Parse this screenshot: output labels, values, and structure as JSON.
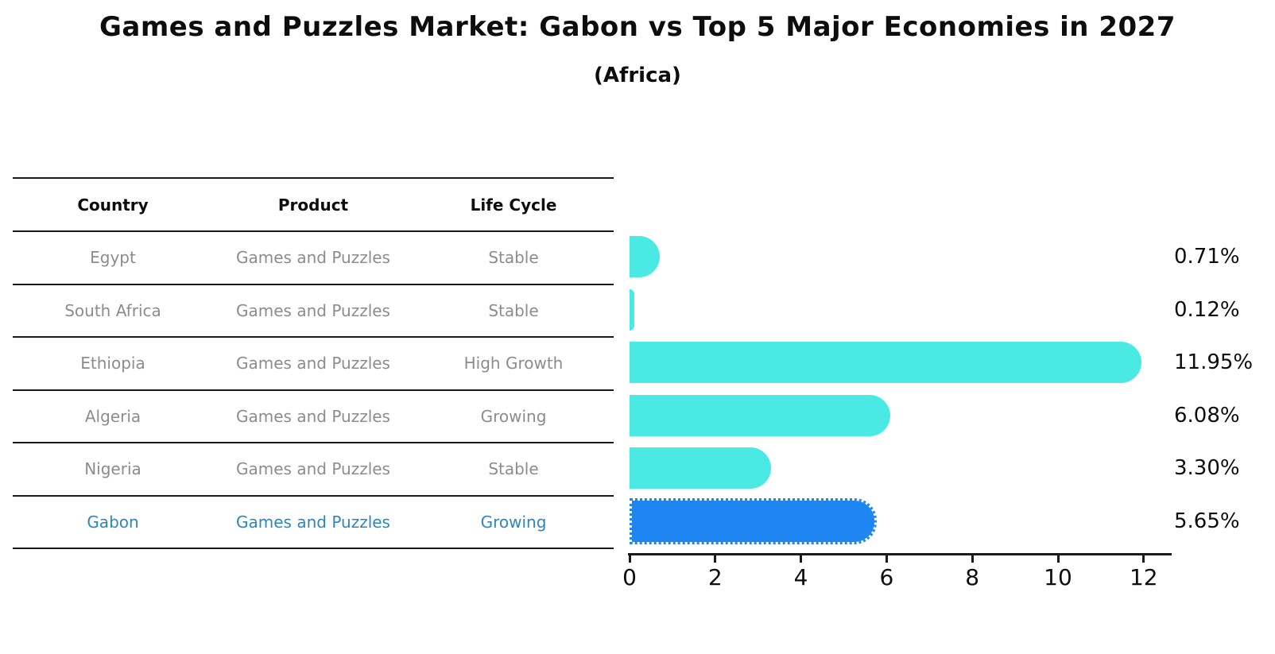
{
  "title": "Games and Puzzles Market: Gabon vs Top 5 Major Economies in 2027",
  "subtitle": "(Africa)",
  "table": {
    "headers": {
      "country": "Country",
      "product": "Product",
      "life_cycle": "Life Cycle"
    },
    "rows": [
      {
        "country": "Egypt",
        "product": "Games and Puzzles",
        "life_cycle": "Stable",
        "highlight": false
      },
      {
        "country": "South Africa",
        "product": "Games and Puzzles",
        "life_cycle": "Stable",
        "highlight": false
      },
      {
        "country": "Ethiopia",
        "product": "Games and Puzzles",
        "life_cycle": "High Growth",
        "highlight": false
      },
      {
        "country": "Algeria",
        "product": "Games and Puzzles",
        "life_cycle": "Growing",
        "highlight": false
      },
      {
        "country": "Nigeria",
        "product": "Games and Puzzles",
        "life_cycle": "Stable",
        "highlight": true
      }
    ],
    "highlight_row": {
      "country": "Gabon",
      "product": "Games and Puzzles",
      "life_cycle": "Growing",
      "highlight": true
    }
  },
  "chart_data": {
    "type": "bar",
    "orientation": "horizontal",
    "title": "Games and Puzzles Market: Gabon vs Top 5 Major Economies in 2027 (Africa)",
    "categories": [
      "Egypt",
      "South Africa",
      "Ethiopia",
      "Algeria",
      "Nigeria",
      "Gabon"
    ],
    "values": [
      0.71,
      0.12,
      11.95,
      6.08,
      3.3,
      5.65
    ],
    "value_labels": [
      "0.71%",
      "0.12%",
      "11.95%",
      "6.08%",
      "3.30%",
      "5.65%"
    ],
    "x_ticks": [
      0,
      2,
      4,
      6,
      8,
      10,
      12
    ],
    "xlim": [
      0,
      12.6
    ],
    "grid": false,
    "legend_position": "none",
    "bar_color": "#4ae9e3",
    "highlight_color": "#1f85f0",
    "highlight_index": 5
  },
  "colors": {
    "bar_cyan": "#4ae9e3",
    "bar_blue": "#1f85f0",
    "highlight_text": "#2e86c1",
    "body_text": "#8c8c8c",
    "line": "#1a1a1a"
  }
}
